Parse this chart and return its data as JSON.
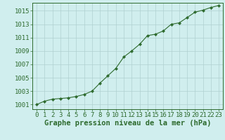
{
  "x": [
    0,
    1,
    2,
    3,
    4,
    5,
    6,
    7,
    8,
    9,
    10,
    11,
    12,
    13,
    14,
    15,
    16,
    17,
    18,
    19,
    20,
    21,
    22,
    23
  ],
  "y": [
    1001.0,
    1001.5,
    1001.8,
    1001.9,
    1002.0,
    1002.2,
    1002.5,
    1003.0,
    1004.2,
    1005.3,
    1006.4,
    1008.1,
    1009.0,
    1010.0,
    1011.3,
    1011.5,
    1012.0,
    1013.0,
    1013.2,
    1014.0,
    1014.8,
    1015.1,
    1015.5,
    1015.8
  ],
  "line_color": "#2d6a2d",
  "marker": "D",
  "marker_size": 2.2,
  "bg_color": "#d0eeee",
  "grid_color": "#b0d0d0",
  "ylabel_ticks": [
    1001,
    1003,
    1005,
    1007,
    1009,
    1011,
    1013,
    1015
  ],
  "xlabel_label": "Graphe pression niveau de la mer (hPa)",
  "ylim": [
    1000.3,
    1016.2
  ],
  "xlim": [
    -0.5,
    23.5
  ],
  "tick_fontsize": 6.5,
  "label_fontsize": 7.5
}
